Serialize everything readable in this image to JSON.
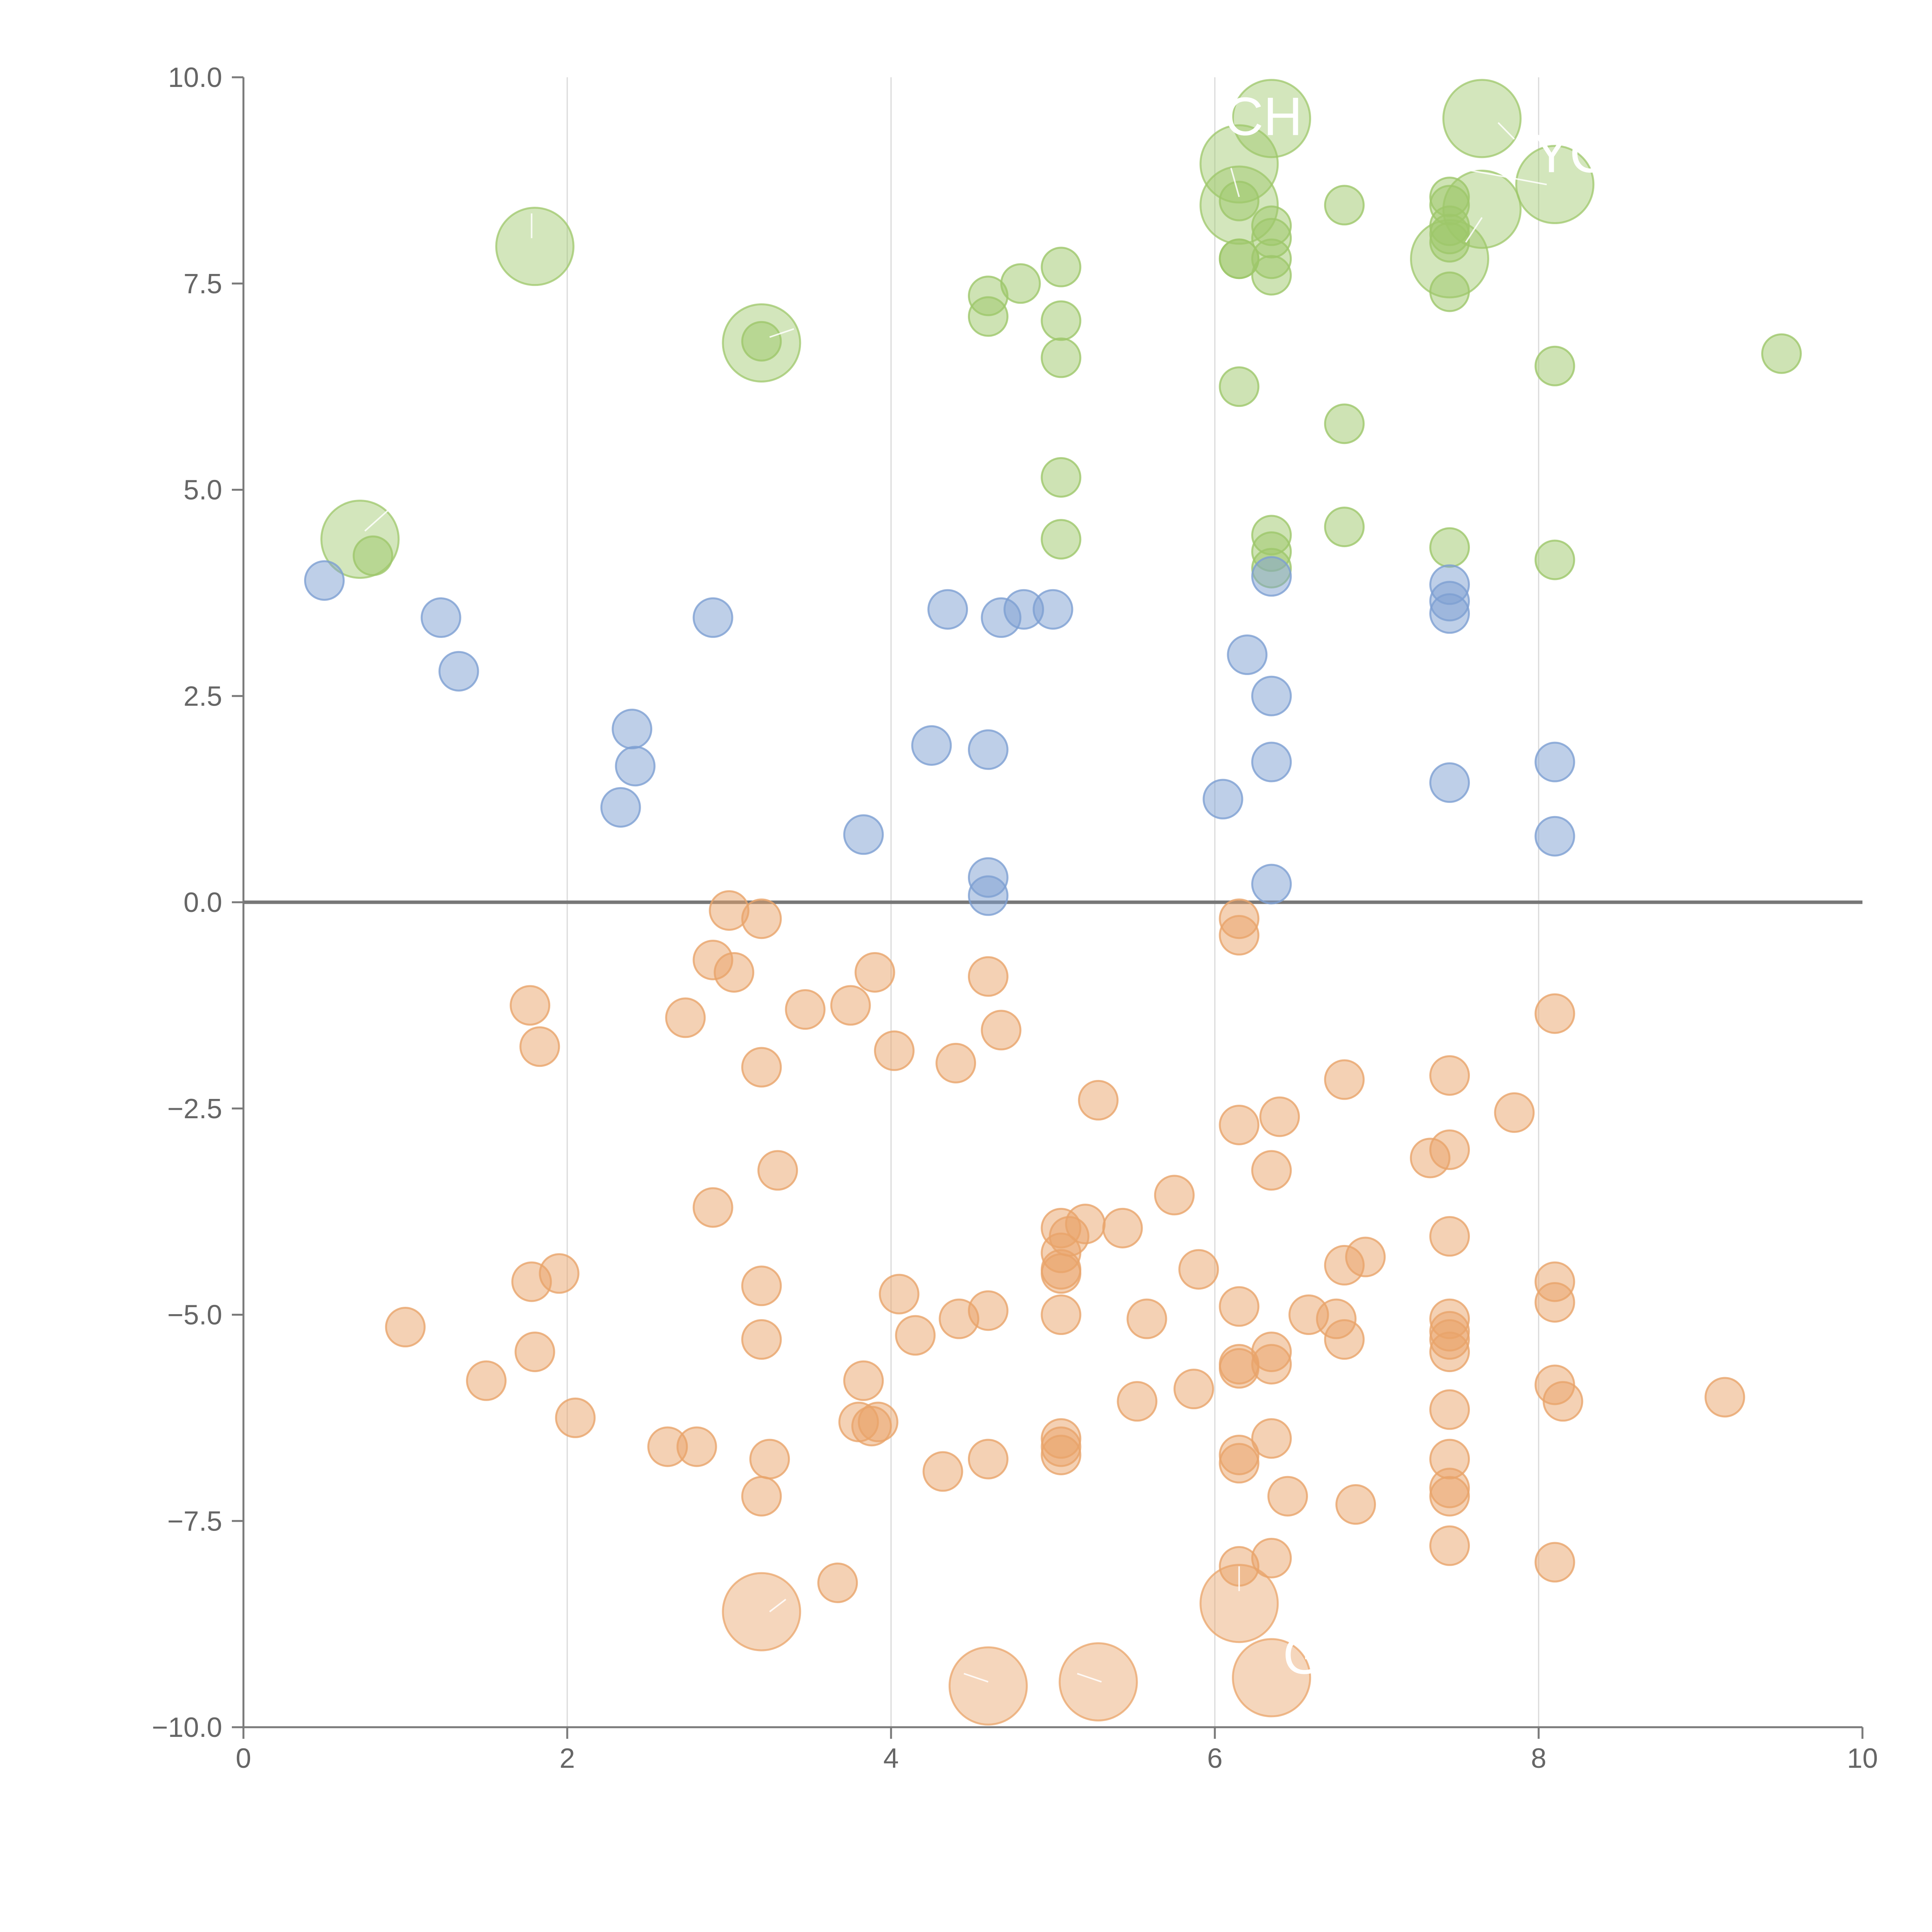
{
  "chart_data": {
    "type": "scatter",
    "title": "",
    "xlabel": "",
    "ylabel": "",
    "xlim": [
      0,
      10
    ],
    "ylim": [
      -10,
      10
    ],
    "xticks": [
      "0",
      "2",
      "4",
      "6",
      "8",
      "10"
    ],
    "yticks": [
      "10.0",
      "7.5",
      "5.0",
      "2.5",
      "0.0",
      "−2.5",
      "−5.0",
      "−7.5",
      "−10.0"
    ],
    "grid": "vertical",
    "zero_line": true,
    "colors": {
      "green": "#9dc76a",
      "blue": "#7d9fd2",
      "orange": "#e9a46a"
    },
    "series": [
      {
        "name": "green",
        "points": [
          [
            0.8,
            4.2
          ],
          [
            3.2,
            6.8
          ],
          [
            4.6,
            7.35
          ],
          [
            4.6,
            7.1
          ],
          [
            4.8,
            7.5
          ],
          [
            5.05,
            7.7
          ],
          [
            5.05,
            7.05
          ],
          [
            5.05,
            6.6
          ],
          [
            5.05,
            5.15
          ],
          [
            5.05,
            4.4
          ],
          [
            6.15,
            8.5
          ],
          [
            6.15,
            7.8
          ],
          [
            6.15,
            7.8
          ],
          [
            6.15,
            6.25
          ],
          [
            6.35,
            8.2
          ],
          [
            6.35,
            8.05
          ],
          [
            6.35,
            7.8
          ],
          [
            6.35,
            7.6
          ],
          [
            6.35,
            4.45
          ],
          [
            6.35,
            4.25
          ],
          [
            6.35,
            4.05
          ],
          [
            6.8,
            8.45
          ],
          [
            6.8,
            5.8
          ],
          [
            6.8,
            4.55
          ],
          [
            7.45,
            8.55
          ],
          [
            7.45,
            8.45
          ],
          [
            7.45,
            8.2
          ],
          [
            7.45,
            8.1
          ],
          [
            7.45,
            8.0
          ],
          [
            7.45,
            7.4
          ],
          [
            7.45,
            4.3
          ],
          [
            8.1,
            6.5
          ],
          [
            8.1,
            4.15
          ],
          [
            9.5,
            6.65
          ]
        ],
        "large": [
          [
            0.72,
            4.4
          ],
          [
            1.8,
            7.95
          ],
          [
            3.2,
            6.78
          ],
          [
            6.15,
            8.95
          ],
          [
            6.15,
            8.45
          ],
          [
            6.35,
            9.5
          ],
          [
            7.45,
            7.8
          ],
          [
            7.65,
            8.4
          ],
          [
            7.65,
            9.5
          ],
          [
            8.1,
            8.7
          ]
        ]
      },
      {
        "name": "blue",
        "points": [
          [
            0.5,
            3.9
          ],
          [
            1.22,
            3.45
          ],
          [
            1.33,
            2.8
          ],
          [
            2.33,
            1.15
          ],
          [
            2.4,
            2.1
          ],
          [
            2.42,
            1.65
          ],
          [
            2.9,
            3.45
          ],
          [
            3.83,
            0.82
          ],
          [
            4.25,
            1.9
          ],
          [
            4.35,
            3.55
          ],
          [
            4.6,
            1.85
          ],
          [
            4.6,
            0.3
          ],
          [
            4.6,
            0.08
          ],
          [
            4.68,
            3.45
          ],
          [
            4.82,
            3.55
          ],
          [
            5.0,
            3.55
          ],
          [
            6.05,
            1.25
          ],
          [
            6.2,
            3.0
          ],
          [
            6.35,
            3.95
          ],
          [
            6.35,
            2.5
          ],
          [
            6.35,
            1.7
          ],
          [
            6.35,
            0.22
          ],
          [
            7.45,
            3.85
          ],
          [
            7.45,
            3.65
          ],
          [
            7.45,
            3.5
          ],
          [
            7.45,
            1.45
          ],
          [
            8.1,
            1.7
          ],
          [
            8.1,
            0.8
          ]
        ]
      },
      {
        "name": "orange",
        "points": [
          [
            1.0,
            -5.15
          ],
          [
            1.5,
            -5.8
          ],
          [
            1.77,
            -1.25
          ],
          [
            1.78,
            -4.6
          ],
          [
            1.8,
            -5.45
          ],
          [
            1.83,
            -1.75
          ],
          [
            1.95,
            -4.5
          ],
          [
            2.05,
            -6.25
          ],
          [
            2.62,
            -6.6
          ],
          [
            2.73,
            -1.4
          ],
          [
            2.8,
            -6.6
          ],
          [
            2.9,
            -0.7
          ],
          [
            2.9,
            -3.7
          ],
          [
            3.0,
            -0.1
          ],
          [
            3.03,
            -0.85
          ],
          [
            3.2,
            -0.2
          ],
          [
            3.2,
            -2.0
          ],
          [
            3.2,
            -4.65
          ],
          [
            3.2,
            -5.3
          ],
          [
            3.2,
            -7.2
          ],
          [
            3.25,
            -6.75
          ],
          [
            3.3,
            -3.25
          ],
          [
            3.47,
            -1.3
          ],
          [
            3.67,
            -8.25
          ],
          [
            3.75,
            -1.25
          ],
          [
            3.8,
            -6.3
          ],
          [
            3.83,
            -5.8
          ],
          [
            3.88,
            -6.35
          ],
          [
            3.92,
            -6.3
          ],
          [
            3.9,
            -0.85
          ],
          [
            4.02,
            -1.8
          ],
          [
            4.05,
            -4.75
          ],
          [
            4.15,
            -5.25
          ],
          [
            4.32,
            -6.9
          ],
          [
            4.4,
            -1.95
          ],
          [
            4.42,
            -5.05
          ],
          [
            4.6,
            -0.9
          ],
          [
            4.6,
            -4.95
          ],
          [
            4.6,
            -6.75
          ],
          [
            4.68,
            -1.55
          ],
          [
            5.05,
            -3.95
          ],
          [
            5.05,
            -4.25
          ],
          [
            5.05,
            -4.45
          ],
          [
            5.05,
            -4.5
          ],
          [
            5.05,
            -5.0
          ],
          [
            5.05,
            -6.5
          ],
          [
            5.05,
            -6.6
          ],
          [
            5.05,
            -6.7
          ],
          [
            5.1,
            -4.05
          ],
          [
            5.2,
            -3.9
          ],
          [
            5.28,
            -2.4
          ],
          [
            5.43,
            -3.95
          ],
          [
            5.52,
            -6.05
          ],
          [
            5.58,
            -5.05
          ],
          [
            5.75,
            -3.55
          ],
          [
            5.87,
            -5.9
          ],
          [
            5.9,
            -4.45
          ],
          [
            6.15,
            -0.2
          ],
          [
            6.15,
            -0.4
          ],
          [
            6.15,
            -2.7
          ],
          [
            6.15,
            -4.9
          ],
          [
            6.15,
            -5.6
          ],
          [
            6.15,
            -5.65
          ],
          [
            6.15,
            -6.7
          ],
          [
            6.15,
            -6.8
          ],
          [
            6.15,
            -8.05
          ],
          [
            6.35,
            -3.25
          ],
          [
            6.35,
            -5.45
          ],
          [
            6.35,
            -5.6
          ],
          [
            6.35,
            -6.5
          ],
          [
            6.35,
            -7.95
          ],
          [
            6.4,
            -2.6
          ],
          [
            6.45,
            -7.2
          ],
          [
            6.58,
            -5.0
          ],
          [
            6.75,
            -5.05
          ],
          [
            6.8,
            -2.15
          ],
          [
            6.8,
            -4.4
          ],
          [
            6.8,
            -5.3
          ],
          [
            6.87,
            -7.3
          ],
          [
            6.93,
            -4.3
          ],
          [
            7.33,
            -3.1
          ],
          [
            7.45,
            -2.1
          ],
          [
            7.45,
            -3.0
          ],
          [
            7.45,
            -4.05
          ],
          [
            7.45,
            -5.05
          ],
          [
            7.45,
            -5.2
          ],
          [
            7.45,
            -5.3
          ],
          [
            7.45,
            -5.45
          ],
          [
            7.45,
            -6.15
          ],
          [
            7.45,
            -6.75
          ],
          [
            7.45,
            -7.1
          ],
          [
            7.45,
            -7.2
          ],
          [
            7.45,
            -7.8
          ],
          [
            7.85,
            -2.55
          ],
          [
            8.1,
            -1.35
          ],
          [
            8.1,
            -4.6
          ],
          [
            8.1,
            -4.85
          ],
          [
            8.1,
            -5.85
          ],
          [
            8.1,
            -8.0
          ],
          [
            8.15,
            -6.05
          ],
          [
            9.15,
            -6.0
          ]
        ],
        "large": [
          [
            3.2,
            -8.6
          ],
          [
            4.6,
            -9.5
          ],
          [
            5.28,
            -9.45
          ],
          [
            6.15,
            -8.5
          ],
          [
            6.35,
            -9.4
          ]
        ]
      }
    ],
    "annotations": [
      {
        "text": "CH",
        "x": 6.3,
        "y": 9.3
      },
      {
        "text": "YC",
        "x": 8.2,
        "y": 8.85
      },
      {
        "text": "G",
        "x": 6.55,
        "y": -9.35
      }
    ]
  }
}
